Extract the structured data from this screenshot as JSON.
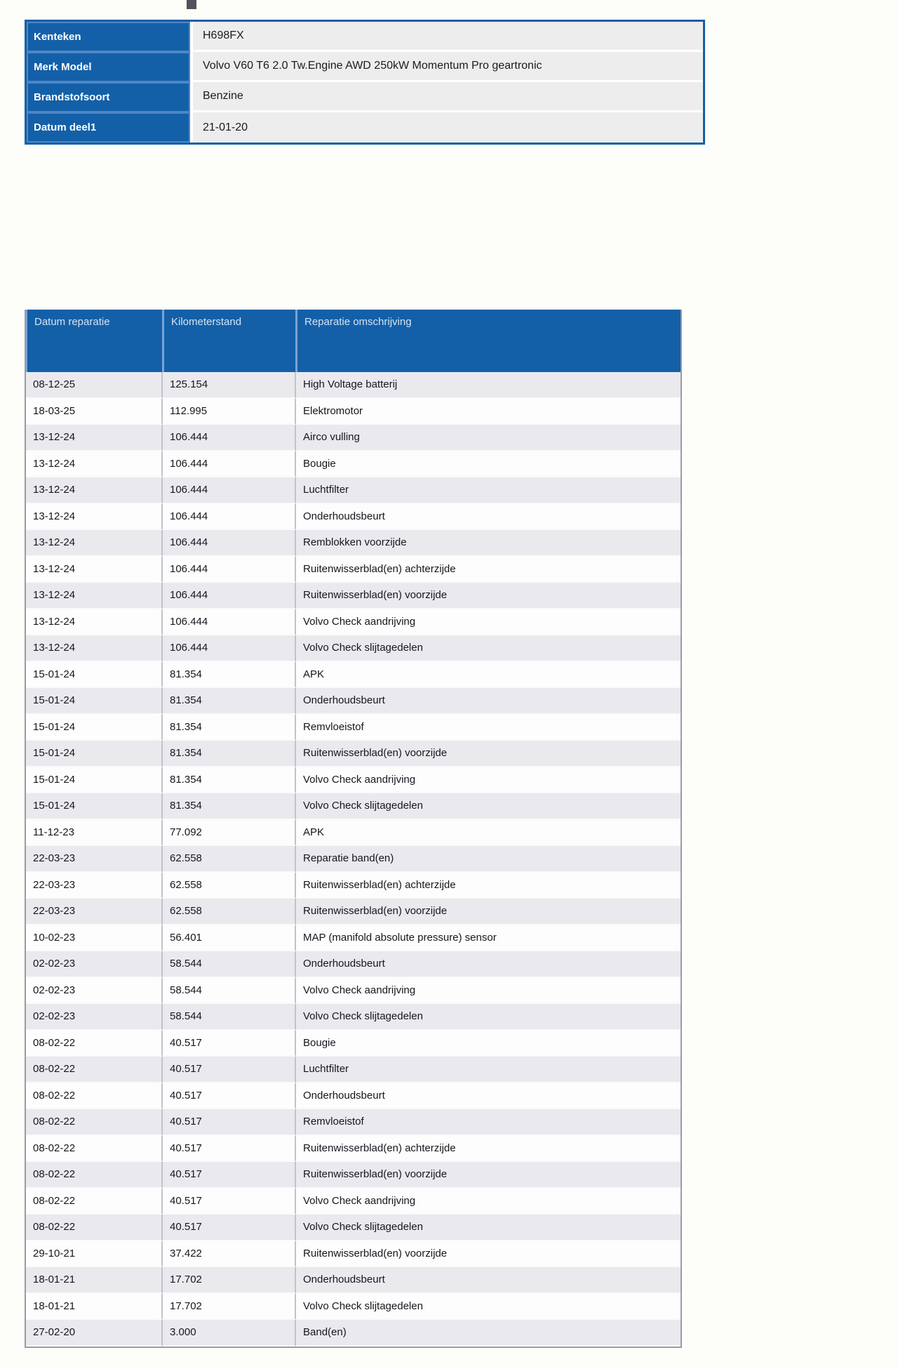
{
  "colors": {
    "header_blue": "#1360a8",
    "separator_light_blue": "#7ba3d4",
    "label_cell_outline": "#4e86c4",
    "row_odd_bg": "#e9e9ee",
    "row_even_bg": "#fdfdfd",
    "table_border_gray": "#9b9ba6",
    "info_value_bg": "#ededed"
  },
  "info_table": {
    "rows": [
      {
        "label": "Kenteken",
        "value": "H698FX"
      },
      {
        "label": "Merk Model",
        "value": "Volvo V60 T6 2.0 Tw.Engine AWD 250kW Momentum Pro geartronic"
      },
      {
        "label": "Brandstofsoort",
        "value": "Benzine"
      },
      {
        "label": "Datum deel1",
        "value": "21-01-20"
      }
    ]
  },
  "repair_table": {
    "columns": [
      "Datum reparatie",
      "Kilometerstand",
      "Reparatie omschrijving"
    ],
    "rows": [
      [
        "08-12-25",
        "125.154",
        "High Voltage batterij"
      ],
      [
        "18-03-25",
        "112.995",
        "Elektromotor"
      ],
      [
        "13-12-24",
        "106.444",
        "Airco vulling"
      ],
      [
        "13-12-24",
        "106.444",
        "Bougie"
      ],
      [
        "13-12-24",
        "106.444",
        "Luchtfilter"
      ],
      [
        "13-12-24",
        "106.444",
        "Onderhoudsbeurt"
      ],
      [
        "13-12-24",
        "106.444",
        "Remblokken voorzijde"
      ],
      [
        "13-12-24",
        "106.444",
        "Ruitenwisserblad(en) achterzijde"
      ],
      [
        "13-12-24",
        "106.444",
        "Ruitenwisserblad(en) voorzijde"
      ],
      [
        "13-12-24",
        "106.444",
        "Volvo Check aandrijving"
      ],
      [
        "13-12-24",
        "106.444",
        "Volvo Check slijtagedelen"
      ],
      [
        "15-01-24",
        "81.354",
        "APK"
      ],
      [
        "15-01-24",
        "81.354",
        "Onderhoudsbeurt"
      ],
      [
        "15-01-24",
        "81.354",
        "Remvloeistof"
      ],
      [
        "15-01-24",
        "81.354",
        "Ruitenwisserblad(en) voorzijde"
      ],
      [
        "15-01-24",
        "81.354",
        "Volvo Check aandrijving"
      ],
      [
        "15-01-24",
        "81.354",
        "Volvo Check slijtagedelen"
      ],
      [
        "11-12-23",
        "77.092",
        "APK"
      ],
      [
        "22-03-23",
        "62.558",
        "Reparatie band(en)"
      ],
      [
        "22-03-23",
        "62.558",
        "Ruitenwisserblad(en) achterzijde"
      ],
      [
        "22-03-23",
        "62.558",
        "Ruitenwisserblad(en) voorzijde"
      ],
      [
        "10-02-23",
        "56.401",
        "MAP (manifold absolute pressure) sensor"
      ],
      [
        "02-02-23",
        "58.544",
        "Onderhoudsbeurt"
      ],
      [
        "02-02-23",
        "58.544",
        "Volvo Check aandrijving"
      ],
      [
        "02-02-23",
        "58.544",
        "Volvo Check slijtagedelen"
      ],
      [
        "08-02-22",
        "40.517",
        "Bougie"
      ],
      [
        "08-02-22",
        "40.517",
        "Luchtfilter"
      ],
      [
        "08-02-22",
        "40.517",
        "Onderhoudsbeurt"
      ],
      [
        "08-02-22",
        "40.517",
        "Remvloeistof"
      ],
      [
        "08-02-22",
        "40.517",
        "Ruitenwisserblad(en) achterzijde"
      ],
      [
        "08-02-22",
        "40.517",
        "Ruitenwisserblad(en) voorzijde"
      ],
      [
        "08-02-22",
        "40.517",
        "Volvo Check aandrijving"
      ],
      [
        "08-02-22",
        "40.517",
        "Volvo Check slijtagedelen"
      ],
      [
        "29-10-21",
        "37.422",
        "Ruitenwisserblad(en) voorzijde"
      ],
      [
        "18-01-21",
        "17.702",
        "Onderhoudsbeurt"
      ],
      [
        "18-01-21",
        "17.702",
        "Volvo Check slijtagedelen"
      ],
      [
        "27-02-20",
        "3.000",
        "Band(en)"
      ]
    ]
  }
}
